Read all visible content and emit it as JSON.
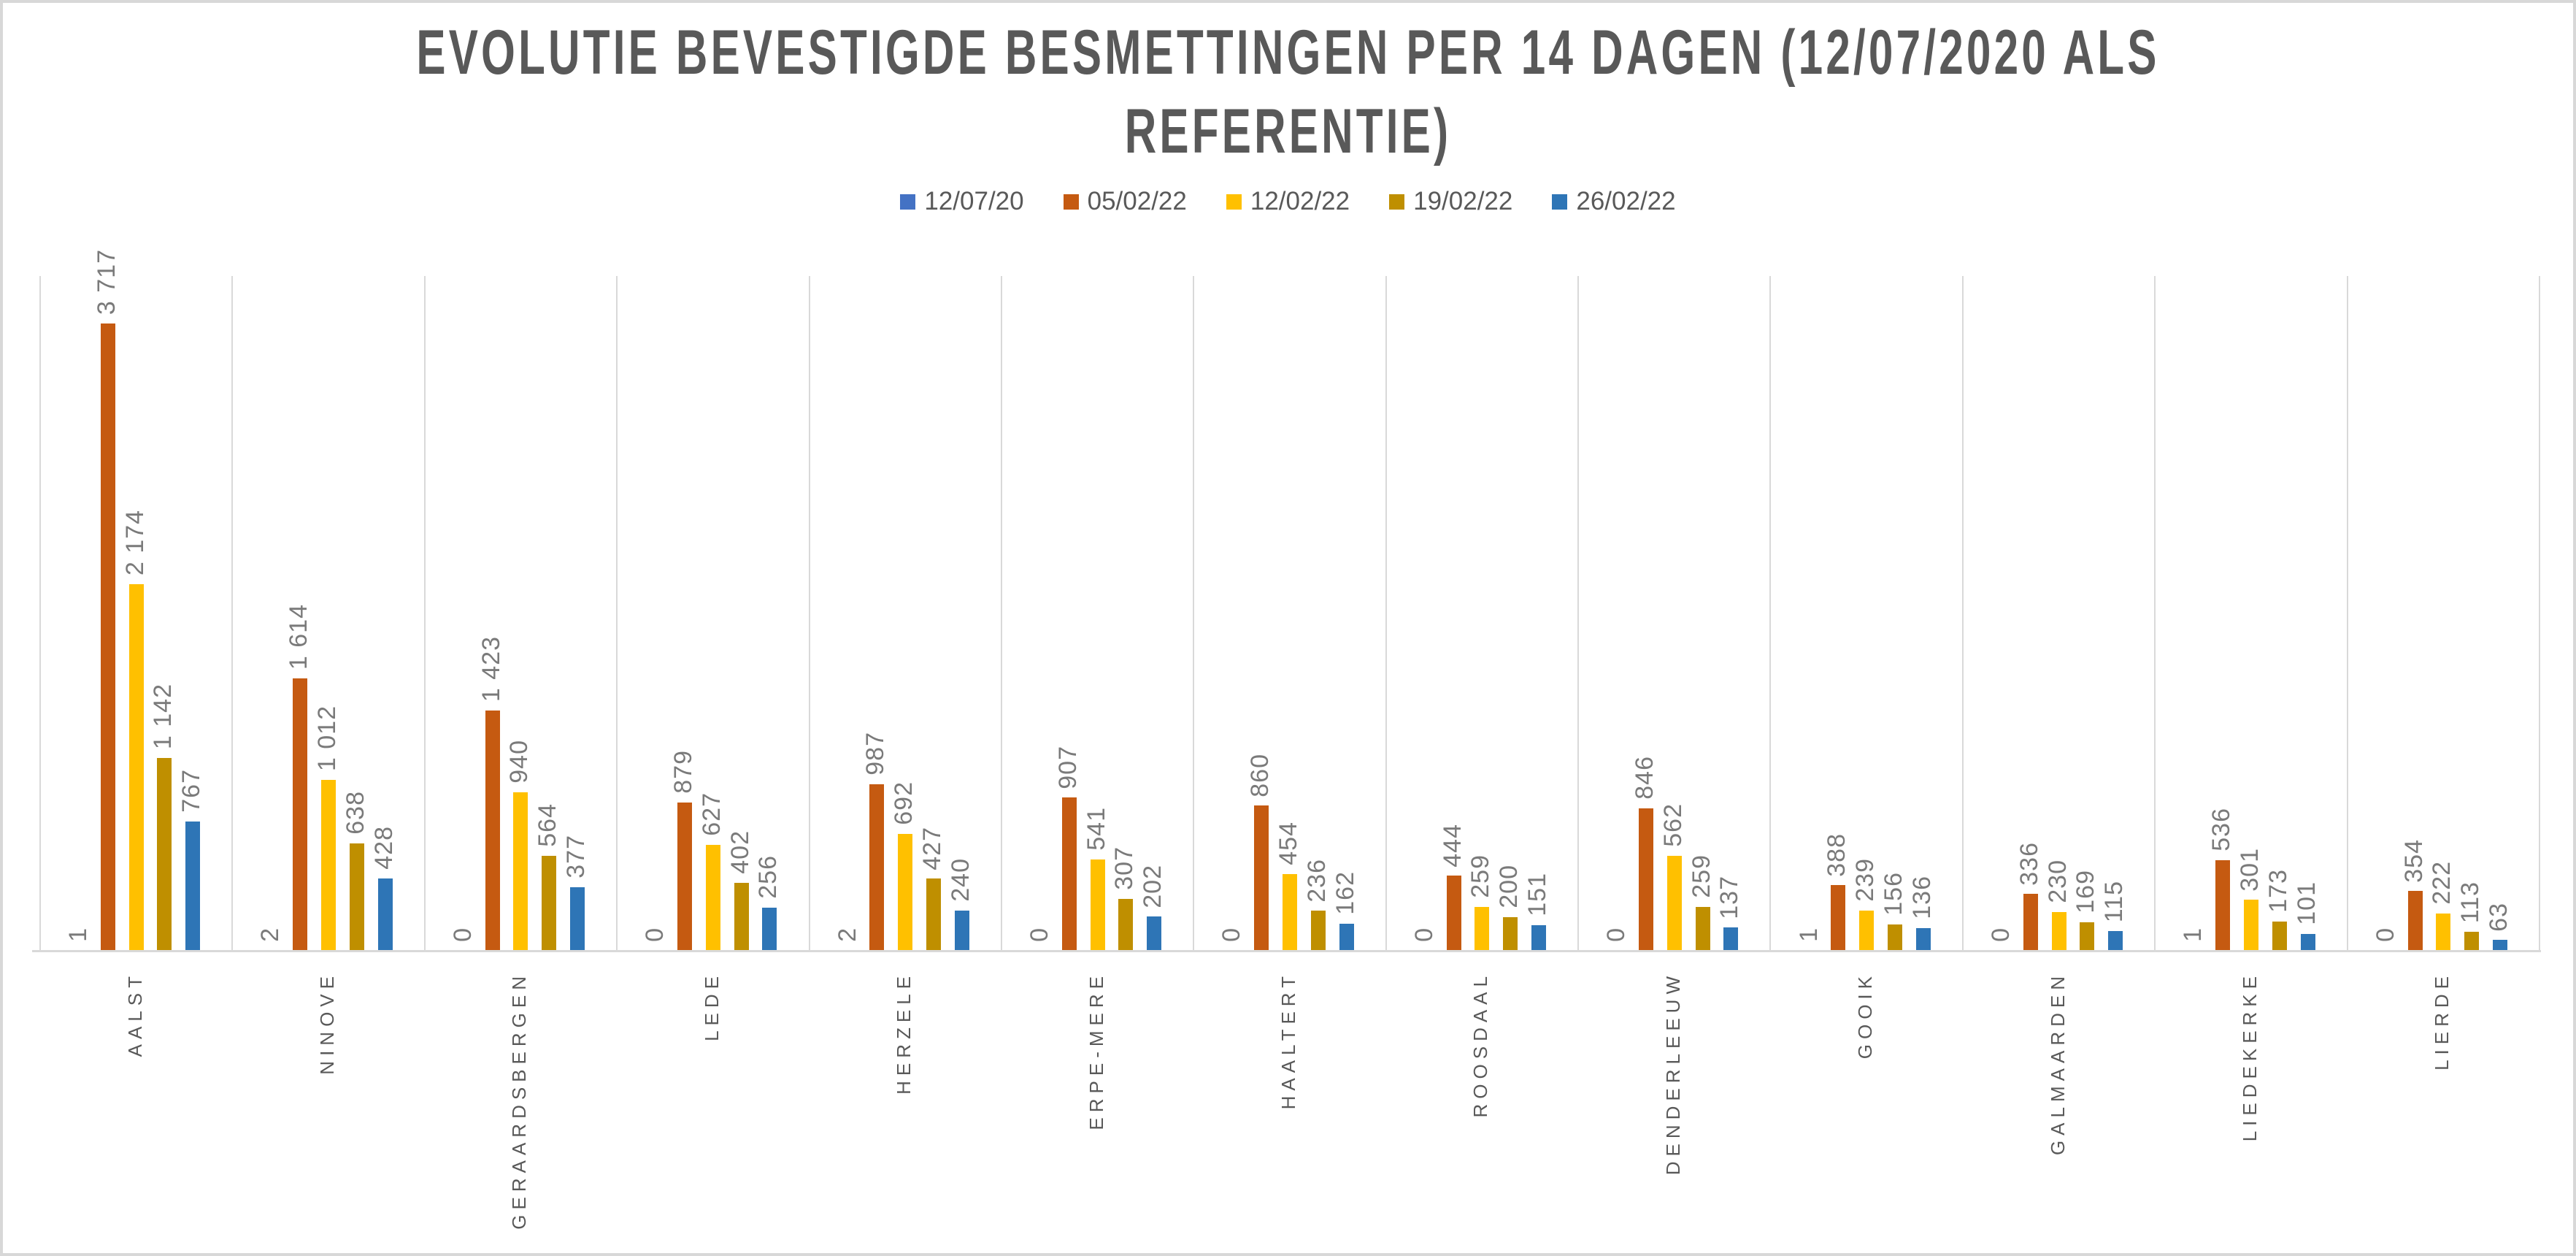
{
  "title": "EVOLUTIE BEVESTIGDE BESMETTINGEN PER 14 DAGEN (12/07/2020 ALS REFERENTIE)",
  "title_lines": [
    "EVOLUTIE BEVESTIGDE BESMETTINGEN PER 14 DAGEN (12/07/2020 ALS",
    "REFERENTIE)"
  ],
  "colors": {
    "title_text": "#595959",
    "category_text": "#595959",
    "value_label_text": "#7A7A7A",
    "gridline": "#D9D9D9",
    "frame_border": "#D8D8D8"
  },
  "chart_data": {
    "type": "bar",
    "title": "EVOLUTIE BEVESTIGDE BESMETTINGEN PER 14 DAGEN (12/07/2020 ALS REFERENTIE)",
    "categories": [
      "AALST",
      "NINOVE",
      "GERAARDSBERGEN",
      "LEDE",
      "HERZELE",
      "ERPE-MERE",
      "HAALTERT",
      "ROOSDAAL",
      "DENDERLEEUW",
      "GOOIK",
      "GALMAARDEN",
      "LIEDEKERKE",
      "LIERDE"
    ],
    "series": [
      {
        "name": "12/07/20",
        "color": "#4472C4",
        "values": [
          1,
          2,
          0,
          0,
          2,
          0,
          0,
          0,
          0,
          1,
          0,
          1,
          0
        ]
      },
      {
        "name": "05/02/22",
        "color": "#C55A11",
        "values": [
          3717,
          1614,
          1423,
          879,
          987,
          907,
          860,
          444,
          846,
          388,
          336,
          536,
          354
        ]
      },
      {
        "name": "12/02/22",
        "color": "#FFC000",
        "values": [
          2174,
          1012,
          940,
          627,
          692,
          541,
          454,
          259,
          562,
          239,
          230,
          301,
          222
        ]
      },
      {
        "name": "19/02/22",
        "color": "#BF8F00",
        "values": [
          1142,
          638,
          564,
          402,
          427,
          307,
          236,
          200,
          259,
          156,
          169,
          173,
          113
        ]
      },
      {
        "name": "26/02/22",
        "color": "#2E75B6",
        "values": [
          767,
          428,
          377,
          256,
          240,
          202,
          162,
          151,
          137,
          136,
          115,
          101,
          63
        ]
      }
    ],
    "ylim": [
      0,
      4000
    ],
    "xlabel": "",
    "ylabel": "",
    "value_labels": true,
    "value_label_rotation": "vertical-bottom-to-top",
    "category_label_rotation": "vertical-bottom-to-top",
    "axis_visible": false,
    "gridlines": "vertical-category-separators-only",
    "legend_position": "top",
    "thousands_separator": "space"
  }
}
